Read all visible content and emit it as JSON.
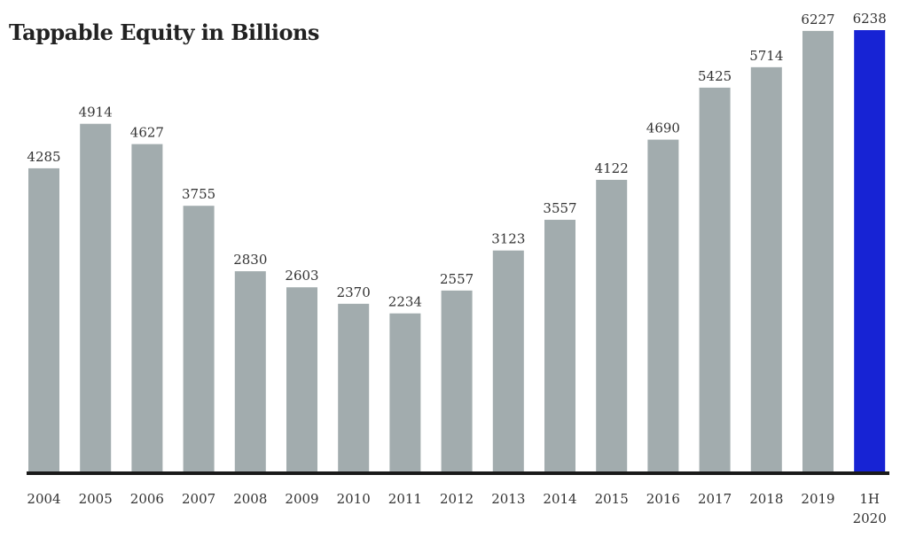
{
  "chart_data": {
    "type": "bar",
    "title": "Tappable Equity in Billions",
    "xlabel": "",
    "ylabel": "",
    "ylim": [
      0,
      6238
    ],
    "categories": [
      "2004",
      "2005",
      "2006",
      "2007",
      "2008",
      "2009",
      "2010",
      "2011",
      "2012",
      "2013",
      "2014",
      "2015",
      "2016",
      "2017",
      "2018",
      "2019",
      "1H 2020"
    ],
    "category_lines": [
      [
        "2004"
      ],
      [
        "2005"
      ],
      [
        "2006"
      ],
      [
        "2007"
      ],
      [
        "2008"
      ],
      [
        "2009"
      ],
      [
        "2010"
      ],
      [
        "2011"
      ],
      [
        "2012"
      ],
      [
        "2013"
      ],
      [
        "2014"
      ],
      [
        "2015"
      ],
      [
        "2016"
      ],
      [
        "2017"
      ],
      [
        "2018"
      ],
      [
        "2019"
      ],
      [
        "1H",
        "2020"
      ]
    ],
    "values": [
      4285,
      4914,
      4627,
      3755,
      2830,
      2603,
      2370,
      2234,
      2557,
      3123,
      3557,
      4122,
      4690,
      5425,
      5714,
      6227,
      6238
    ],
    "value_labels": [
      "4285",
      "4914",
      "4627",
      "3755",
      "2830",
      "2603",
      "2370",
      "2234",
      "2557",
      "3123",
      "3557",
      "4122",
      "4690",
      "5425",
      "5714",
      "6227",
      "6238"
    ],
    "highlight_index": 16,
    "grid": false,
    "legend": "none",
    "colors": {
      "bar": "#a2acae",
      "highlight": "#1723d4",
      "axis": "#1a1a1a",
      "text": "#333333"
    }
  }
}
